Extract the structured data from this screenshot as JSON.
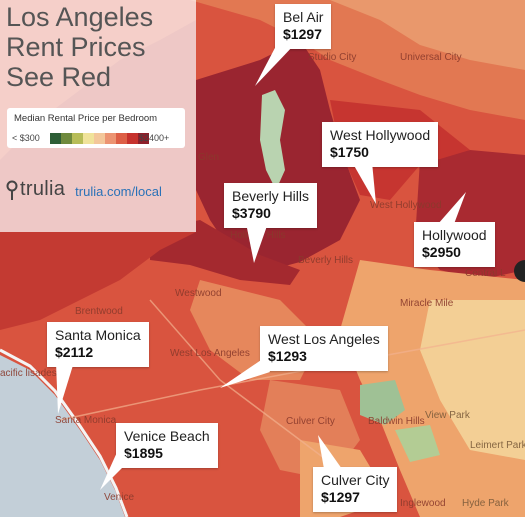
{
  "title": {
    "line1": "Los Angeles",
    "line2": "Rent Prices",
    "line3": "See Red"
  },
  "legend": {
    "title": "Median Rental Price per Bedroom",
    "min_label": "< $300",
    "max_label": "$2400+",
    "scale_colors": [
      "#2e5e36",
      "#6f8a3d",
      "#b7bd58",
      "#f0e39a",
      "#f3c79a",
      "#ec9472",
      "#dd5f46",
      "#c6322d",
      "#8f1f2a"
    ]
  },
  "brand": {
    "name": "trulia",
    "url": "trulia.com/local"
  },
  "colors": {
    "water": "#c3cfd8",
    "base_red": "#d9543f",
    "dark_red": "#9a2530",
    "light_orange": "#eea46c",
    "pale_yellow": "#f3cf95",
    "green": "#9fc195"
  },
  "callouts": [
    {
      "name": "Bel Air",
      "price": "$1297"
    },
    {
      "name": "West Hollywood",
      "price": "$1750"
    },
    {
      "name": "Beverly Hills",
      "price": "$3790"
    },
    {
      "name": "Hollywood",
      "price": "$2950"
    },
    {
      "name": "Santa Monica",
      "price": "$2112"
    },
    {
      "name": "West Los Angeles",
      "price": "$1293"
    },
    {
      "name": "Venice Beach",
      "price": "$1895"
    },
    {
      "name": "Culver City",
      "price": "$1297"
    }
  ],
  "map_labels": {
    "studio_city": "Studio City",
    "universal_city": "Universal City",
    "glen": "Glen",
    "west_hollywood": "West Hollywood",
    "beverly_hills": "Beverly Hills",
    "holmby_hills": "Holmby Hills",
    "westwood": "Westwood",
    "central_la": "Central L",
    "miracle_mile": "Miracle Mile",
    "brentwood": "Brentwood",
    "west_los_angeles": "West Los Angeles",
    "pacific_palisades": "acific lisades",
    "santa_monica": "Santa Monica",
    "culver_city": "Culver City",
    "venice": "Venice",
    "baldwin_hills": "Baldwin Hills",
    "view_park": "View Park",
    "leimert_park": "Leimert Park",
    "hyde_park": "Hyde Park",
    "inglewood": "Inglewood"
  }
}
